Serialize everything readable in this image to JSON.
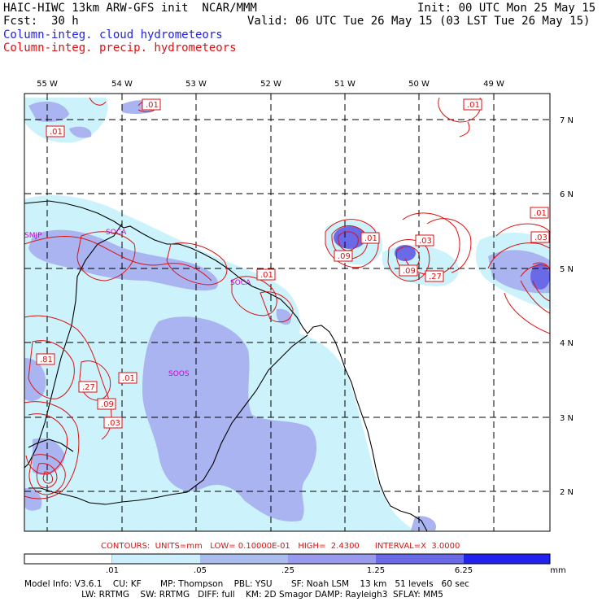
{
  "header": {
    "title": "HAIC-HIWC 13km ARW-GFS init  NCAR/MMM",
    "fcst": "Fcst:  30 h",
    "init": "Init: 00 UTC Mon 25 May 15",
    "valid": "Valid: 06 UTC Tue 26 May 15 (03 LST Tue 26 May 15)",
    "legend_cloud": "Column-integ. cloud hydrometeors",
    "legend_precip": "Column-integ. precip. hydrometeors"
  },
  "map": {
    "lon_labels": [
      "55 W",
      "54 W",
      "53 W",
      "52 W",
      "51 W",
      "50 W",
      "49 W"
    ],
    "lat_labels": [
      "7 N",
      "6 N",
      "5 N",
      "4 N",
      "3 N",
      "2 N"
    ],
    "stations": [
      "SMJP",
      "SOCA",
      "SOCA",
      "SOOS"
    ],
    "contour_labels": [
      ".01",
      ".01",
      ".01",
      ".01",
      ".01",
      ".01",
      ".03",
      ".09",
      ".09",
      ".27",
      ".03",
      ".81",
      ".27",
      ".01",
      ".09",
      ".03"
    ]
  },
  "contour_info": {
    "text": "CONTOURS:  UNITS=mm   LOW= 0.10000E-01   HIGH=  2.4300      INTERVAL=X  3.0000"
  },
  "colorbar": {
    "ticks": [
      ".01",
      ".05",
      ".25",
      "1.25",
      "6.25"
    ],
    "unit": "mm",
    "colors": [
      "#ffffff",
      "#cceeff",
      "#aaddff",
      "#aabbee",
      "#7777ee",
      "#2222ee"
    ]
  },
  "footer": {
    "line1": "Model Info: V3.6.1    CU: KF       MP: Thompson    PBL: YSU       SF: Noah LSM    13 km   51 levels   60 sec",
    "line2": "                     LW: RRTMG    SW: RRTMG   DIFF: full    KM: 2D Smagor DAMP: Rayleigh3  SFLAY: MM5"
  },
  "colors": {
    "cloud_light": "#ccf3fb",
    "cloud_mid": "#aab4f0",
    "cloud_dark": "#6a6ae8",
    "precip": "#dd1111",
    "coast": "#000000",
    "station": "#cc00cc"
  }
}
